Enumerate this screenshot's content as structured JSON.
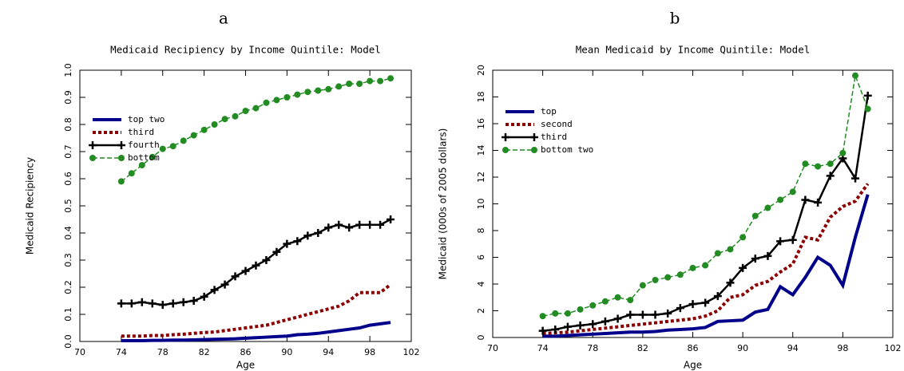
{
  "chart_data": [
    {
      "type": "line",
      "letter": "a",
      "title": "Medicaid Recipiency by Income Quintile:  Model",
      "xlabel": "Age",
      "ylabel": "Medicaid Recipiency",
      "x": [
        74,
        75,
        76,
        77,
        78,
        79,
        80,
        81,
        82,
        83,
        84,
        85,
        86,
        87,
        88,
        89,
        90,
        91,
        92,
        93,
        94,
        95,
        96,
        97,
        98,
        99,
        100
      ],
      "xlim": [
        70,
        102
      ],
      "xticks": [
        70,
        74,
        78,
        82,
        86,
        90,
        94,
        98,
        102
      ],
      "ylim": [
        0,
        1
      ],
      "yticks": [
        {
          "value": 0,
          "label": "0.0"
        },
        0.1,
        0.2,
        0.3,
        0.4,
        0.5,
        0.6,
        0.7,
        0.8,
        0.9,
        {
          "value": 1,
          "label": "1.0"
        }
      ],
      "legend": "upper left",
      "series": [
        {
          "name": "top two",
          "color": "#00008b",
          "dash": "solid",
          "marker": "none",
          "width": 4,
          "values": [
            0.003,
            0.003,
            0.003,
            0.004,
            0.004,
            0.005,
            0.005,
            0.006,
            0.007,
            0.008,
            0.009,
            0.01,
            0.012,
            0.014,
            0.016,
            0.018,
            0.02,
            0.025,
            0.027,
            0.03,
            0.035,
            0.04,
            0.045,
            0.05,
            0.06,
            0.065,
            0.07
          ]
        },
        {
          "name": "third",
          "color": "#8b0000",
          "dash": "dotted",
          "marker": "none",
          "width": 4,
          "values": [
            0.02,
            0.02,
            0.02,
            0.022,
            0.022,
            0.025,
            0.027,
            0.03,
            0.033,
            0.035,
            0.04,
            0.045,
            0.05,
            0.055,
            0.06,
            0.07,
            0.08,
            0.09,
            0.1,
            0.11,
            0.12,
            0.13,
            0.15,
            0.18,
            0.18,
            0.18,
            0.21
          ]
        },
        {
          "name": "fourth",
          "color": "#000000",
          "dash": "solid",
          "marker": "plus",
          "width": 2.5,
          "values": [
            0.14,
            0.14,
            0.145,
            0.14,
            0.135,
            0.14,
            0.145,
            0.15,
            0.165,
            0.19,
            0.21,
            0.24,
            0.26,
            0.28,
            0.3,
            0.33,
            0.36,
            0.37,
            0.39,
            0.4,
            0.42,
            0.43,
            0.42,
            0.43,
            0.43,
            0.43,
            0.45
          ]
        },
        {
          "name": "bottom",
          "color": "#228b22",
          "dash": "dashed",
          "marker": "circle",
          "width": 1.5,
          "values": [
            0.59,
            0.62,
            0.65,
            0.68,
            0.71,
            0.72,
            0.74,
            0.76,
            0.78,
            0.8,
            0.82,
            0.83,
            0.85,
            0.86,
            0.88,
            0.89,
            0.9,
            0.91,
            0.92,
            0.925,
            0.93,
            0.94,
            0.95,
            0.95,
            0.96,
            0.96,
            0.97
          ]
        }
      ]
    },
    {
      "type": "line",
      "letter": "b",
      "title": "Mean Medicaid by Income Quintile:  Model",
      "xlabel": "Age",
      "ylabel": "Medicaid (000s of 2005 dollars)",
      "x": [
        74,
        75,
        76,
        77,
        78,
        79,
        80,
        81,
        82,
        83,
        84,
        85,
        86,
        87,
        88,
        89,
        90,
        91,
        92,
        93,
        94,
        95,
        96,
        97,
        98,
        99,
        100
      ],
      "xlim": [
        70,
        102
      ],
      "xticks": [
        70,
        74,
        78,
        82,
        86,
        90,
        94,
        98,
        102
      ],
      "ylim": [
        0,
        20
      ],
      "yticks": [
        0,
        2,
        4,
        6,
        8,
        10,
        12,
        14,
        16,
        18,
        20
      ],
      "legend": "upper left",
      "series": [
        {
          "name": "top",
          "color": "#00008b",
          "dash": "solid",
          "marker": "none",
          "width": 4,
          "values": [
            0.1,
            0.1,
            0.15,
            0.2,
            0.25,
            0.3,
            0.35,
            0.4,
            0.4,
            0.45,
            0.55,
            0.6,
            0.65,
            0.75,
            1.2,
            1.25,
            1.3,
            1.9,
            2.1,
            3.8,
            3.2,
            4.5,
            6.0,
            5.4,
            3.9,
            7.5,
            10.7
          ]
        },
        {
          "name": "second",
          "color": "#8b0000",
          "dash": "dotted",
          "marker": "none",
          "width": 4,
          "values": [
            0.3,
            0.35,
            0.4,
            0.5,
            0.6,
            0.7,
            0.8,
            0.9,
            1.0,
            1.1,
            1.2,
            1.3,
            1.4,
            1.6,
            2.0,
            3.0,
            3.2,
            3.9,
            4.2,
            4.9,
            5.5,
            7.5,
            7.3,
            9.0,
            9.8,
            10.2,
            11.5
          ]
        },
        {
          "name": "third",
          "color": "#000000",
          "dash": "solid",
          "marker": "plus",
          "width": 2.5,
          "values": [
            0.5,
            0.6,
            0.8,
            0.9,
            1.0,
            1.2,
            1.4,
            1.7,
            1.7,
            1.7,
            1.8,
            2.2,
            2.5,
            2.6,
            3.1,
            4.1,
            5.2,
            5.9,
            6.1,
            7.2,
            7.3,
            10.3,
            10.1,
            12.1,
            13.4,
            11.9,
            18.1
          ]
        },
        {
          "name": "bottom two",
          "color": "#228b22",
          "dash": "dashed",
          "marker": "circle",
          "width": 1.5,
          "values": [
            1.6,
            1.8,
            1.8,
            2.1,
            2.4,
            2.7,
            3.0,
            2.8,
            3.9,
            4.3,
            4.5,
            4.7,
            5.2,
            5.4,
            6.3,
            6.6,
            7.5,
            9.1,
            9.7,
            10.3,
            10.9,
            13.0,
            12.8,
            13.0,
            13.8,
            19.6,
            17.1
          ]
        }
      ]
    }
  ]
}
